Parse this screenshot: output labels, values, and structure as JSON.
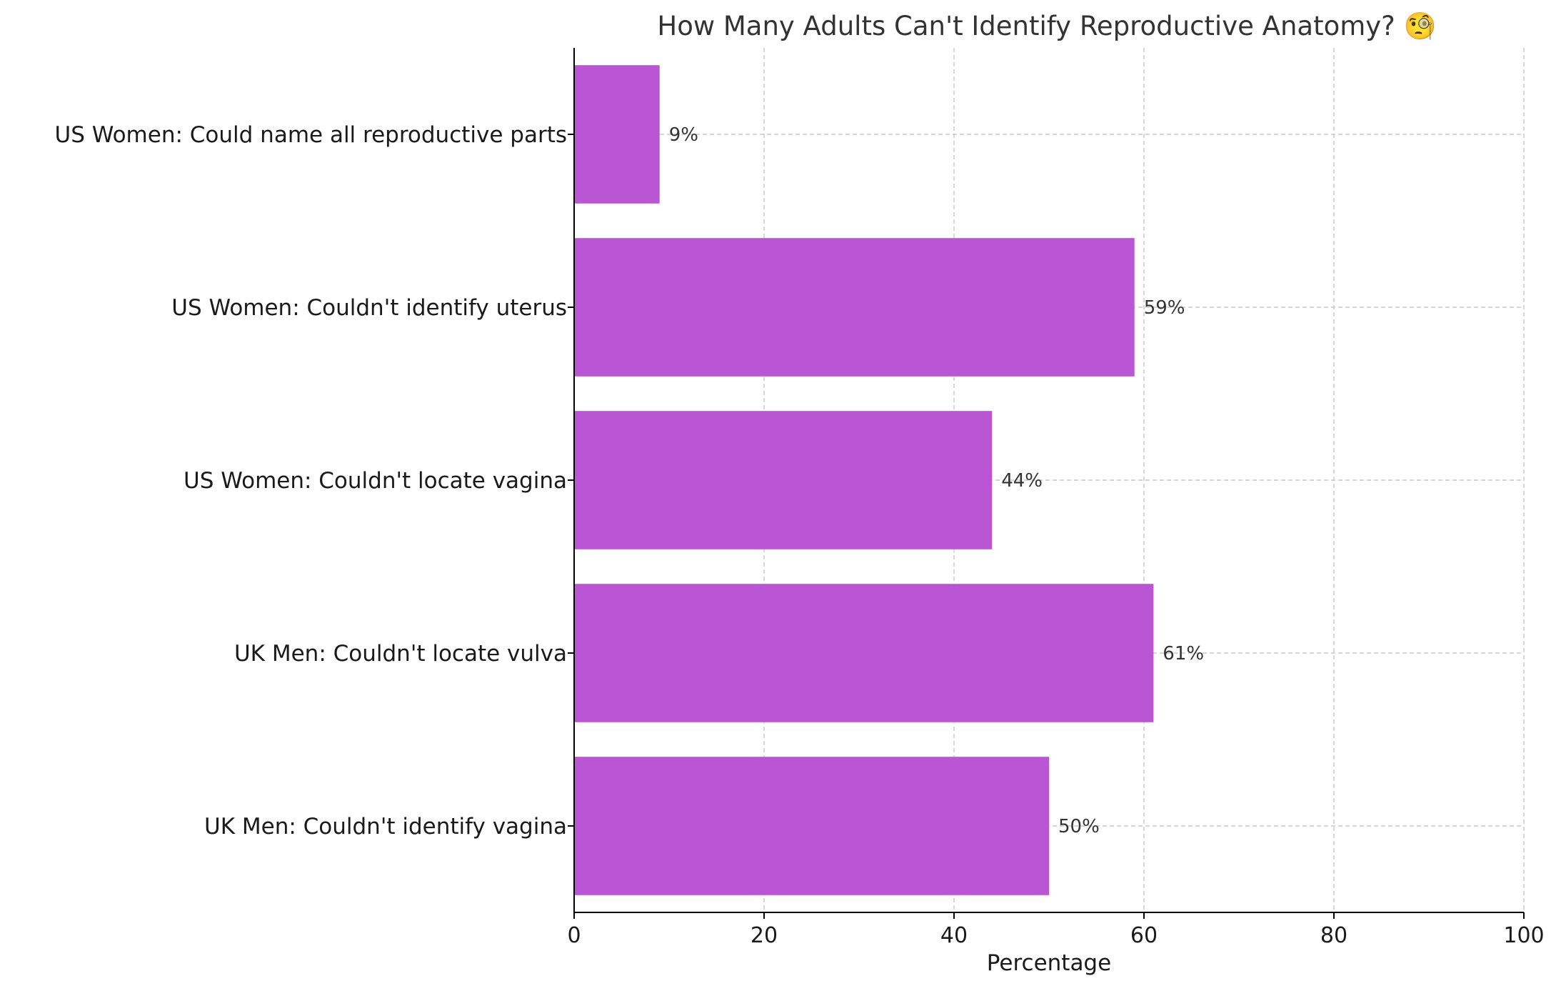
{
  "chart_data": {
    "type": "bar",
    "orientation": "horizontal",
    "title": "How Many Adults Can't Identify Reproductive Anatomy? 🧐",
    "xlabel": "Percentage",
    "ylabel": "",
    "xlim": [
      0,
      100
    ],
    "x_ticks": [
      "0",
      "20",
      "40",
      "60",
      "80",
      "100"
    ],
    "grid": true,
    "categories": [
      "UK Men: Couldn't identify vagina",
      "UK Men: Couldn't locate vulva",
      "US Women: Couldn't locate vagina",
      "US Women: Couldn't identify uterus",
      "US Women: Could name all reproductive parts"
    ],
    "values": [
      50,
      61,
      44,
      59,
      9
    ],
    "data_labels": [
      "50%",
      "61%",
      "44%",
      "59%",
      "9%"
    ],
    "bar_color": "#ba55d3"
  }
}
